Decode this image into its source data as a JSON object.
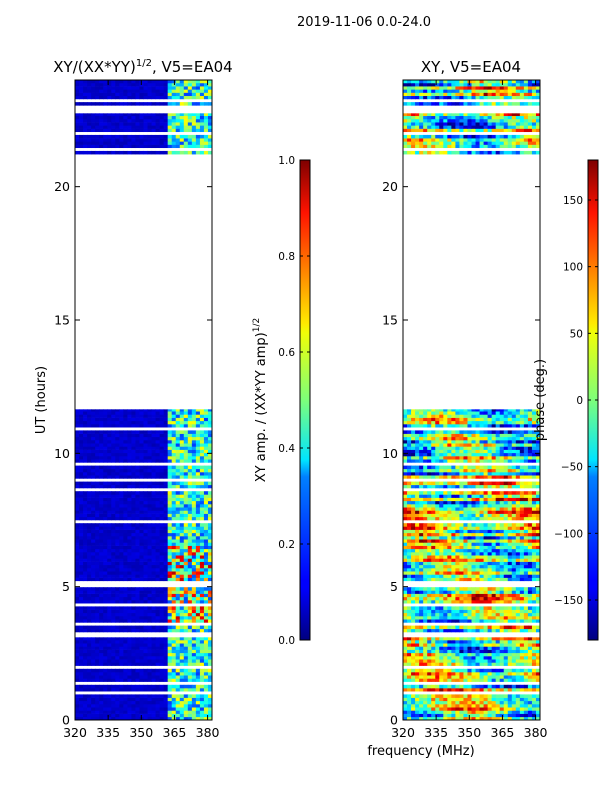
{
  "figure_title": "2019-11-06 0.0-24.0",
  "xlabel": "frequency (MHz)",
  "ylabel": "UT (hours)",
  "chart_data": [
    {
      "type": "heatmap",
      "title": "XY/(XX*YY)",
      "title_exponent": "1/2",
      "title_suffix": ", V5=EA04",
      "x_range": [
        320,
        382
      ],
      "y_range": [
        0,
        24
      ],
      "x_ticks": [
        320,
        335,
        350,
        365,
        380
      ],
      "y_ticks": [
        0,
        5,
        10,
        15,
        20
      ],
      "colorbar": {
        "label": "XY amp. / (XX*YY amp)",
        "label_exponent": "1/2",
        "range": [
          0.0,
          1.0
        ],
        "ticks": [
          "0.0",
          "0.2",
          "0.4",
          "0.6",
          "0.8",
          "1.0"
        ],
        "tick_values": [
          0.0,
          0.2,
          0.4,
          0.6,
          0.8,
          1.0
        ],
        "colormap": "jet"
      },
      "observed_ut_ranges": [
        [
          0.0,
          3.1
        ],
        [
          3.3,
          11.65
        ],
        [
          21.1,
          22.75
        ],
        [
          23.05,
          24.0
        ]
      ],
      "active_freq_range_mhz": [
        362,
        382
      ],
      "background_value": 0.05
    },
    {
      "type": "heatmap",
      "title": "XY, V5=EA04",
      "x_range": [
        320,
        382
      ],
      "y_range": [
        0,
        24
      ],
      "x_ticks": [
        320,
        335,
        350,
        365,
        380
      ],
      "y_ticks": [
        0,
        5,
        10,
        15,
        20
      ],
      "colorbar": {
        "label": "phase (deg.)",
        "range": [
          -180,
          180
        ],
        "ticks": [
          "−150",
          "−100",
          "−50",
          "0",
          "50",
          "100",
          "150"
        ],
        "tick_values": [
          -150,
          -100,
          -50,
          0,
          50,
          100,
          150
        ],
        "colormap": "jet"
      },
      "observed_ut_ranges": [
        [
          0.0,
          3.1
        ],
        [
          3.3,
          11.65
        ],
        [
          21.1,
          22.75
        ],
        [
          23.05,
          24.0
        ]
      ]
    }
  ]
}
